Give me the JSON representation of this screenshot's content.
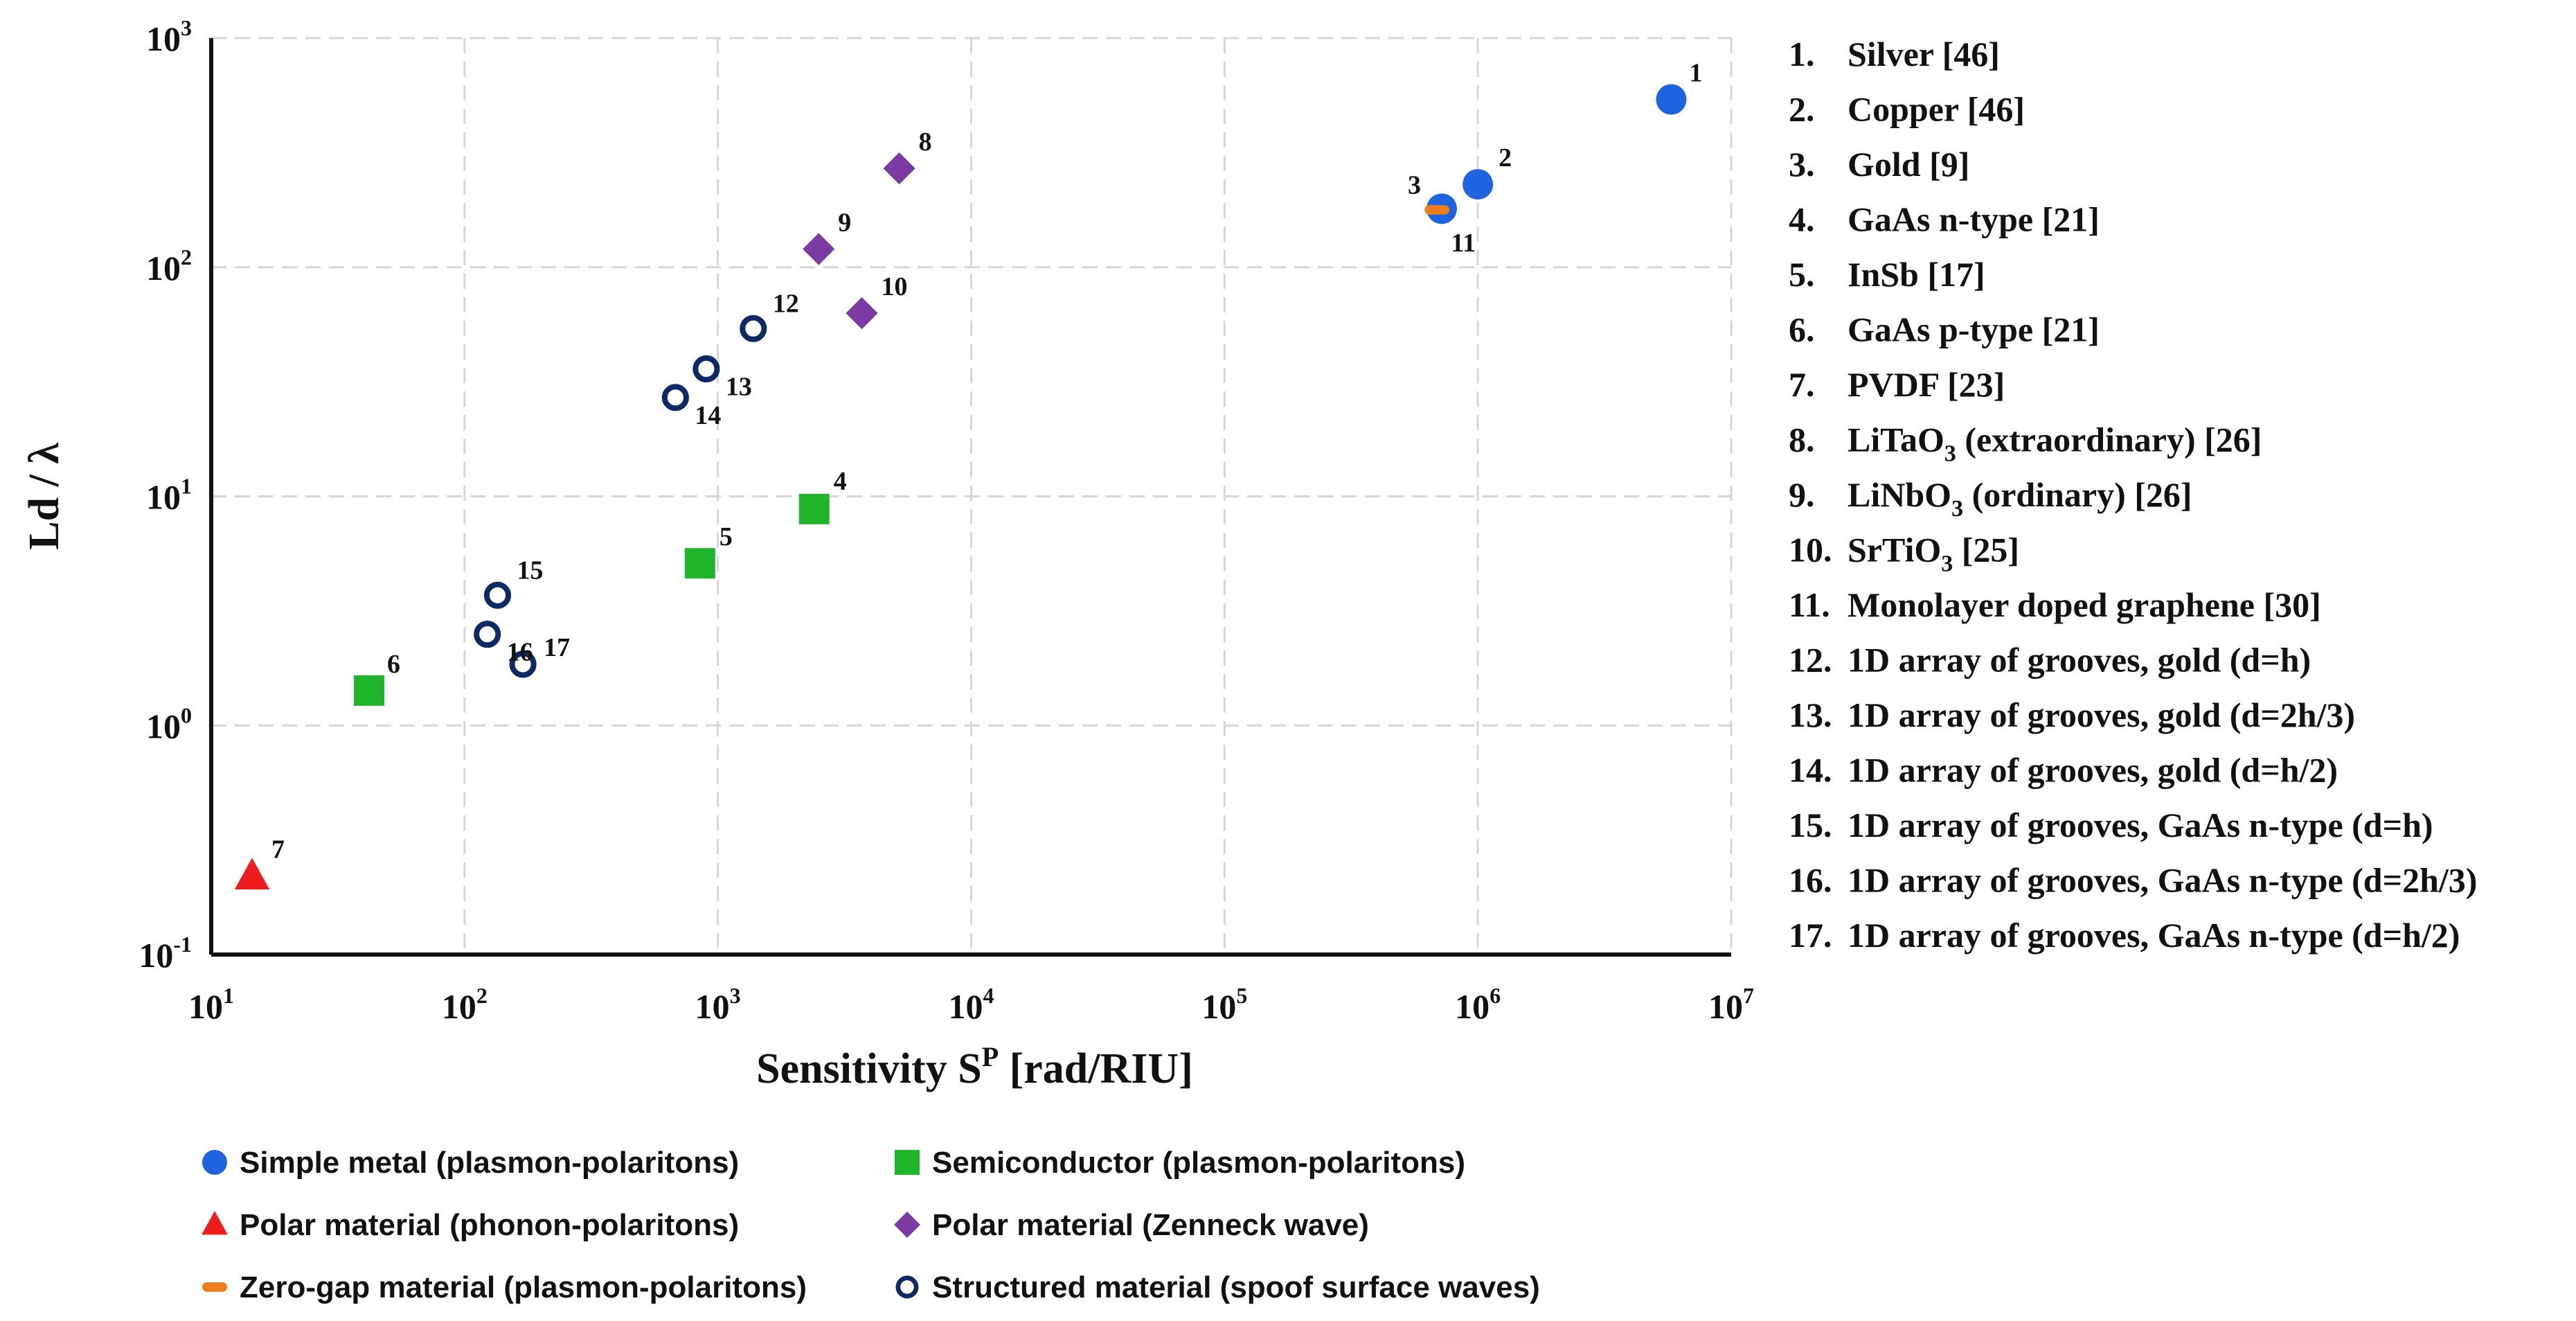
{
  "chart_data": {
    "type": "scatter",
    "title": "",
    "xlabel": "Sensitivity S",
    "xlabel_sup": "P",
    "xlabel_tail": " [rad/RIU]",
    "ylabel": "Ld / λ",
    "xscale": "log",
    "yscale": "log",
    "xlim": [
      10,
      10000000
    ],
    "ylim": [
      0.1,
      1000
    ],
    "grid": true,
    "x_ticks": [
      {
        "value": 10,
        "base": "10",
        "exp": "1"
      },
      {
        "value": 100,
        "base": "10",
        "exp": "2"
      },
      {
        "value": 1000,
        "base": "10",
        "exp": "3"
      },
      {
        "value": 10000,
        "base": "10",
        "exp": "4"
      },
      {
        "value": 100000,
        "base": "10",
        "exp": "5"
      },
      {
        "value": 1000000,
        "base": "10",
        "exp": "6"
      },
      {
        "value": 10000000,
        "base": "10",
        "exp": "7"
      }
    ],
    "y_ticks": [
      {
        "value": 0.1,
        "base": "10",
        "exp": "-1"
      },
      {
        "value": 1,
        "base": "10",
        "exp": "0"
      },
      {
        "value": 10,
        "base": "10",
        "exp": "1"
      },
      {
        "value": 100,
        "base": "10",
        "exp": "2"
      },
      {
        "value": 1000,
        "base": "10",
        "exp": "3"
      }
    ],
    "series": [
      {
        "name": "Simple metal (plasmon-polaritons)",
        "marker": "circle",
        "color": "#1f63e0",
        "points": [
          {
            "id": "1",
            "x": 5800000,
            "y": 540
          },
          {
            "id": "2",
            "x": 1000000,
            "y": 230
          },
          {
            "id": "3",
            "x": 720000,
            "y": 180
          }
        ]
      },
      {
        "name": "Semiconductor (plasmon-polaritons)",
        "marker": "square",
        "color": "#1fb52b",
        "points": [
          {
            "id": "4",
            "x": 2400,
            "y": 8.8
          },
          {
            "id": "5",
            "x": 850,
            "y": 5.1
          },
          {
            "id": "6",
            "x": 42,
            "y": 1.42
          }
        ]
      },
      {
        "name": "Polar material (phonon-polaritons)",
        "marker": "triangle",
        "color": "#ee1c1c",
        "points": [
          {
            "id": "7",
            "x": 14.5,
            "y": 0.22
          }
        ]
      },
      {
        "name": "Polar material (Zenneck wave)",
        "marker": "diamond",
        "color": "#7b3ba3",
        "points": [
          {
            "id": "8",
            "x": 5200,
            "y": 270
          },
          {
            "id": "9",
            "x": 2500,
            "y": 120
          },
          {
            "id": "10",
            "x": 3700,
            "y": 63
          }
        ]
      },
      {
        "name": "Zero-gap material (plasmon-polaritons)",
        "marker": "dash",
        "color": "#f07d1a",
        "points": [
          {
            "id": "11",
            "x": 690000,
            "y": 178
          }
        ]
      },
      {
        "name": "Structured material (spoof surface waves)",
        "marker": "open-circle",
        "color": "#0d2a66",
        "points": [
          {
            "id": "12",
            "x": 1380,
            "y": 54
          },
          {
            "id": "13",
            "x": 900,
            "y": 36
          },
          {
            "id": "14",
            "x": 680,
            "y": 27
          },
          {
            "id": "15",
            "x": 135,
            "y": 3.7
          },
          {
            "id": "16",
            "x": 123,
            "y": 2.5
          },
          {
            "id": "17",
            "x": 170,
            "y": 1.85
          }
        ]
      }
    ],
    "references": [
      {
        "num": "1.",
        "text": "Silver [46]"
      },
      {
        "num": "2.",
        "text": "Copper [46]"
      },
      {
        "num": "3.",
        "text": "Gold [9]"
      },
      {
        "num": "4.",
        "text": "GaAs n-type [21]"
      },
      {
        "num": "5.",
        "text": "InSb [17]"
      },
      {
        "num": "6.",
        "text": "GaAs p-type [21]"
      },
      {
        "num": "7.",
        "text": "PVDF [23]"
      },
      {
        "num": "8.",
        "pre": "LiTaO",
        "sub": "3",
        "post": " (extraordinary) [26]"
      },
      {
        "num": "9.",
        "pre": "LiNbO",
        "sub": "3",
        "post": " (ordinary) [26]"
      },
      {
        "num": "10.",
        "pre": "SrTiO",
        "sub": "3",
        "post": " [25]"
      },
      {
        "num": "11.",
        "text": "Monolayer doped graphene [30]"
      },
      {
        "num": "12.",
        "text": "1D array of grooves, gold (d=h)"
      },
      {
        "num": "13.",
        "text": "1D array of grooves, gold (d=2h/3)"
      },
      {
        "num": "14.",
        "text": "1D array of grooves, gold (d=h/2)"
      },
      {
        "num": "15.",
        "text": "1D array of grooves, GaAs n-type (d=h)"
      },
      {
        "num": "16.",
        "text": "1D array of grooves, GaAs n-type (d=2h/3)"
      },
      {
        "num": "17.",
        "text": "1D array of grooves, GaAs n-type (d=h/2)"
      }
    ],
    "legend": {
      "placement": "bottom",
      "columns": 2
    }
  }
}
